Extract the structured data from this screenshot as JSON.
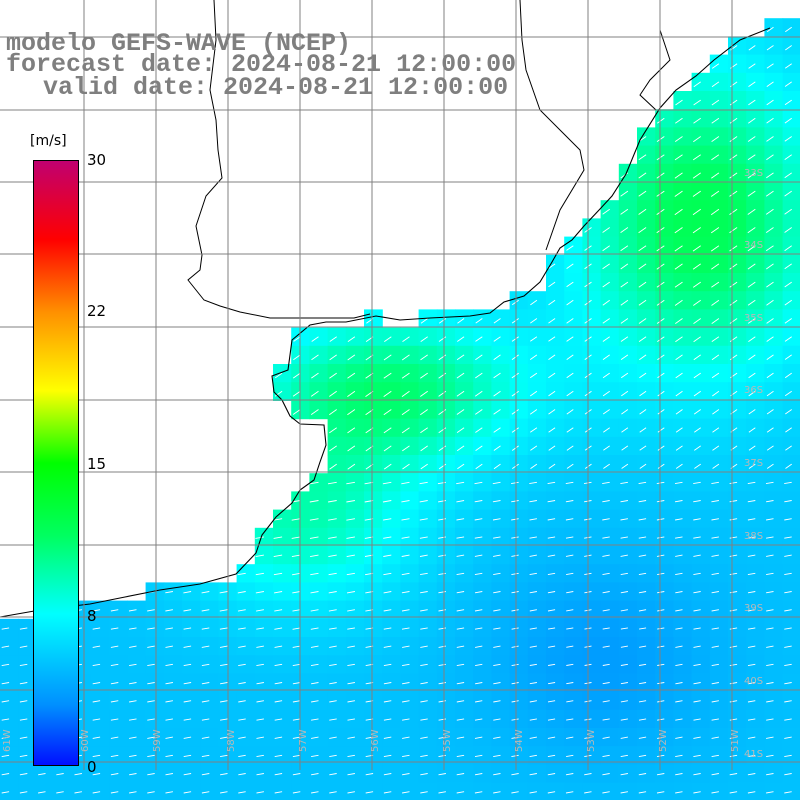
{
  "title": {
    "line1": "modelo GEFS-WAVE (NCEP)",
    "line2": "forecast date: 2024-08-21 12:00:00",
    "line3": "valid date: 2024-08-21 12:00:00"
  },
  "colorbar": {
    "unit": "[m/s]",
    "range": [
      0,
      30
    ],
    "ticks": [
      "30",
      "22",
      "15",
      "8",
      "0"
    ]
  },
  "map": {
    "variable": "wind speed with direction arrows",
    "region": "Rio de la Plata estuary and South Atlantic coast",
    "lat_labels": [
      "33S",
      "34S",
      "35S",
      "36S",
      "37S",
      "38S",
      "39S",
      "40S",
      "41S"
    ],
    "lon_labels": [
      "61W",
      "60W",
      "59W",
      "58W",
      "57W",
      "56W",
      "55W",
      "54W",
      "53W",
      "52W",
      "51W"
    ],
    "land_color": "#ffffff",
    "grid_color": "#808080",
    "arrow_color": "#ffffff"
  }
}
